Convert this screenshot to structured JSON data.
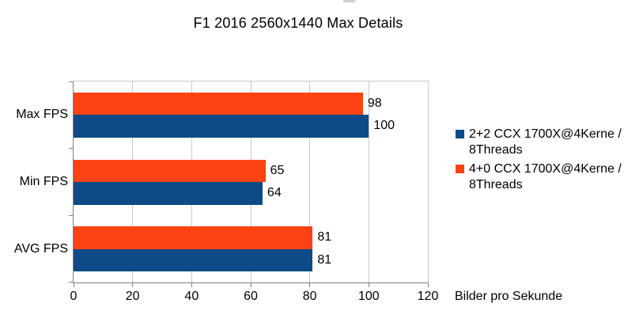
{
  "page": {
    "background": "#ffffff"
  },
  "colors": {
    "grid": "#c9c9c9",
    "axis": "#7f7f7f",
    "text": "#000000",
    "series_blue": "#0d4a87",
    "series_orange": "#fc4214"
  },
  "chart_data": {
    "type": "bar",
    "orientation": "horizontal",
    "title": "F1 2016 2560x1440 Max Details",
    "categories": [
      "Max FPS",
      "Min FPS",
      "AVG FPS"
    ],
    "series": [
      {
        "name": "2+2 CCX 1700X@4Kerne / 8Threads",
        "color": "#0d4a87",
        "values": [
          100,
          64,
          81
        ]
      },
      {
        "name": "4+0 CCX 1700X@4Kerne / 8Threads",
        "color": "#fc4214",
        "values": [
          98,
          65,
          81
        ]
      }
    ],
    "xlabel": "Bilder pro Sekunde",
    "xlim": [
      0,
      120
    ],
    "xticks": [
      0,
      20,
      40,
      60,
      80,
      100,
      120
    ],
    "grid": "vertical",
    "legend_position": "right",
    "data_labels": true
  }
}
